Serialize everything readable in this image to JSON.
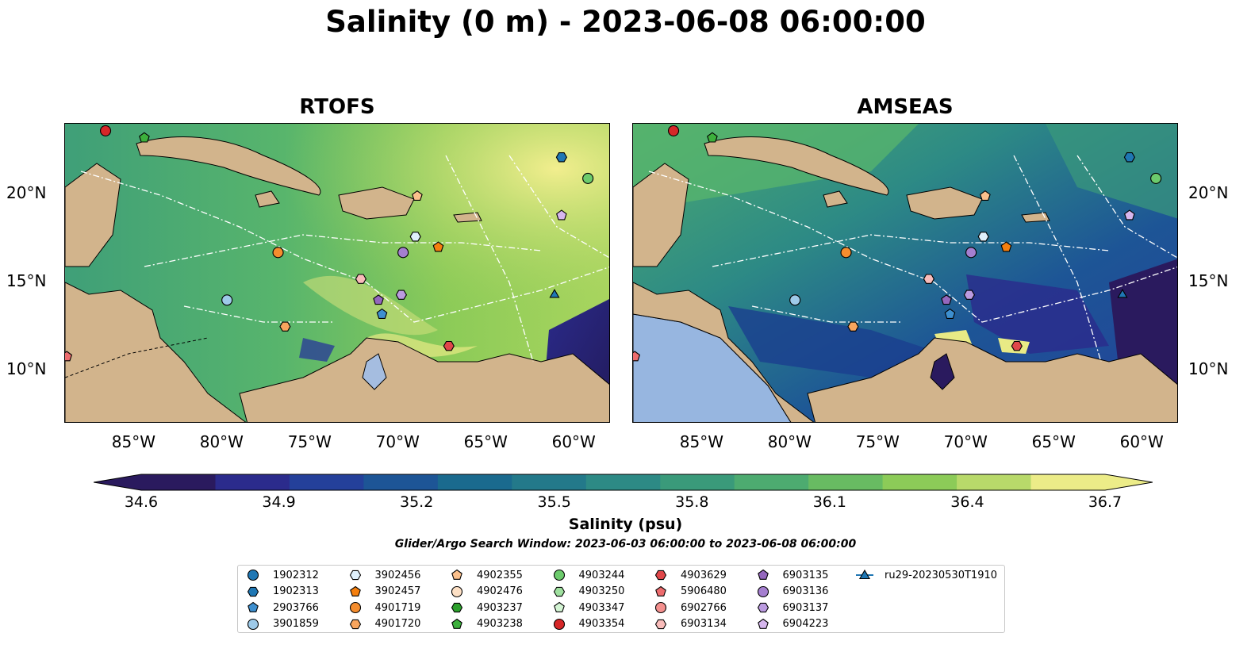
{
  "title": "Salinity (0 m) - 2023-06-08 06:00:00",
  "panels": [
    {
      "title": "RTOFS"
    },
    {
      "title": "AMSEAS"
    }
  ],
  "axes": {
    "lon_ticks": [
      "85°W",
      "80°W",
      "75°W",
      "70°W",
      "65°W",
      "60°W"
    ],
    "lat_ticks": [
      "20°N",
      "15°N",
      "10°N"
    ],
    "lon_range": [
      -89,
      -58
    ],
    "lat_range": [
      7,
      24
    ]
  },
  "colorbar": {
    "label": "Salinity (psu)",
    "ticks": [
      "34.6",
      "34.9",
      "35.2",
      "35.5",
      "35.8",
      "36.1",
      "36.4",
      "36.7"
    ],
    "range": [
      34.6,
      36.7
    ],
    "extend": "both",
    "colors": [
      "#2a1a5e",
      "#2b2b8c",
      "#24409a",
      "#1d5596",
      "#1a6a8e",
      "#23798a",
      "#2d8a85",
      "#3a9a7a",
      "#4dab70",
      "#68bb62",
      "#8ccb58",
      "#b8d96a",
      "#ecec88"
    ]
  },
  "search_window": "Glider/Argo Search Window: 2023-06-03 06:00:00 to 2023-06-08 06:00:00",
  "legend": [
    {
      "label": "1902312",
      "marker": "circle",
      "color": "#1f77b4"
    },
    {
      "label": "1902313",
      "marker": "hexagon",
      "color": "#1f77b4"
    },
    {
      "label": "2903766",
      "marker": "pentagon",
      "color": "#3d8fcf"
    },
    {
      "label": "3901859",
      "marker": "circle",
      "color": "#9ecae9"
    },
    {
      "label": "3902456",
      "marker": "hexagon",
      "color": "#dff0fb"
    },
    {
      "label": "3902457",
      "marker": "pentagon",
      "color": "#f57f0e"
    },
    {
      "label": "4901719",
      "marker": "circle",
      "color": "#f58d2e"
    },
    {
      "label": "4901720",
      "marker": "hexagon",
      "color": "#f8a55e"
    },
    {
      "label": "4902355",
      "marker": "pentagon",
      "color": "#fbc08c"
    },
    {
      "label": "4902476",
      "marker": "circle",
      "color": "#fde0c5"
    },
    {
      "label": "4903237",
      "marker": "hexagon",
      "color": "#2ca02c"
    },
    {
      "label": "4903238",
      "marker": "pentagon",
      "color": "#3cb03c"
    },
    {
      "label": "4903244",
      "marker": "circle",
      "color": "#6ccb6c"
    },
    {
      "label": "4903250",
      "marker": "hexagon",
      "color": "#9fe09f"
    },
    {
      "label": "4903347",
      "marker": "pentagon",
      "color": "#d4f5d4"
    },
    {
      "label": "4903354",
      "marker": "circle",
      "color": "#d62728"
    },
    {
      "label": "4903629",
      "marker": "hexagon",
      "color": "#e0474a"
    },
    {
      "label": "5906480",
      "marker": "pentagon",
      "color": "#ed6c6e"
    },
    {
      "label": "6902766",
      "marker": "circle",
      "color": "#f4908e"
    },
    {
      "label": "6903134",
      "marker": "hexagon",
      "color": "#f9bcba"
    },
    {
      "label": "6903135",
      "marker": "pentagon",
      "color": "#9467bd"
    },
    {
      "label": "6903136",
      "marker": "circle",
      "color": "#a57fd0"
    },
    {
      "label": "6903137",
      "marker": "hexagon",
      "color": "#bb9be0"
    },
    {
      "label": "6904223",
      "marker": "pentagon",
      "color": "#d6b6ee"
    },
    {
      "label": "ru29-20230530T1910",
      "marker": "triangle-line",
      "color": "#1f77b4"
    }
  ],
  "floats": [
    {
      "id": "4903354",
      "lon": -86.7,
      "lat": 23.6
    },
    {
      "id": "4903238",
      "lon": -84.5,
      "lat": 23.2
    },
    {
      "id": "1902313",
      "lon": -60.8,
      "lat": 22.1
    },
    {
      "id": "4903244",
      "lon": -59.3,
      "lat": 20.9
    },
    {
      "id": "4902355",
      "lon": -69.0,
      "lat": 19.9
    },
    {
      "id": "6904223",
      "lon": -60.8,
      "lat": 18.8
    },
    {
      "id": "3902456",
      "lon": -69.1,
      "lat": 17.6
    },
    {
      "id": "3902457",
      "lon": -67.8,
      "lat": 17.0
    },
    {
      "id": "4901719",
      "lon": -76.9,
      "lat": 16.7
    },
    {
      "id": "6903136",
      "lon": -69.8,
      "lat": 16.7
    },
    {
      "id": "6903134",
      "lon": -72.2,
      "lat": 15.2
    },
    {
      "id": "3901859",
      "lon": -79.8,
      "lat": 14.0
    },
    {
      "id": "6903137",
      "lon": -69.9,
      "lat": 14.3
    },
    {
      "id": "6903135",
      "lon": -71.2,
      "lat": 14.0
    },
    {
      "id": "2903766",
      "lon": -71.0,
      "lat": 13.2
    },
    {
      "id": "4901720",
      "lon": -76.5,
      "lat": 12.5
    },
    {
      "id": "4903629",
      "lon": -67.2,
      "lat": 11.4
    },
    {
      "id": "5906480",
      "lon": -88.9,
      "lat": 10.8
    },
    {
      "id": "ru29-20230530T1910",
      "lon": -61.2,
      "lat": 14.3
    }
  ]
}
